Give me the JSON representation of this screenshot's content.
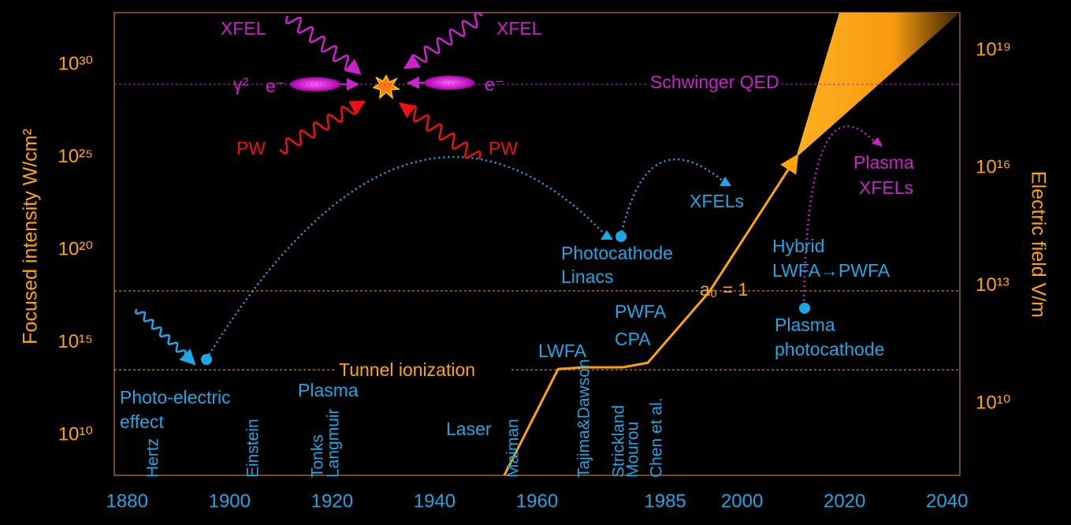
{
  "chart_data": {
    "type": "line",
    "log_scale": true,
    "ylabel": "Focused intensity W/cm²",
    "y2label": "Electric field V/m",
    "xlim": [
      1877.5,
      2042.5
    ],
    "xticks": [
      1880,
      1900,
      1920,
      1940,
      1960,
      1985,
      2000,
      2020,
      2040
    ],
    "ylim": [
      68000000.0,
      6.5e+32
    ],
    "yticks": [
      {
        "value": 10000000000.0,
        "label": "10¹⁰"
      },
      {
        "value": 1000000000000000.0,
        "label": "10¹⁵"
      },
      {
        "value": 1e+20,
        "label": "10²⁰"
      },
      {
        "value": 1e+25,
        "label": "10²⁵"
      },
      {
        "value": 1e+30,
        "label": "10³⁰"
      }
    ],
    "y2lim": [
      150000000.0,
      9.2e+19
    ],
    "y2ticks": [
      {
        "value": 10000000000.0,
        "label": "10¹⁰"
      },
      {
        "value": 10000000000000.0,
        "label": "10¹³"
      },
      {
        "value": 1e+16,
        "label": "10¹⁶"
      },
      {
        "value": 1e+19,
        "label": "10¹⁹"
      }
    ],
    "series": [
      {
        "name": "Laser",
        "color": "#ffa500",
        "x": [
          1953.6,
          1964.1,
          1969.0,
          1976.7,
          1981.6,
          1993.6,
          2010.5
        ],
        "values": [
          68000000.0,
          37000000000000.0,
          46000000000000.0,
          46000000000000.0,
          81000000000000.0,
          5.5e+17,
          9.5e+24
        ]
      }
    ],
    "hlines": [
      {
        "label": "Schwinger QED",
        "value": 8.7e+28,
        "color": "#cc22cc"
      },
      {
        "label": "a₀ = 1",
        "value": 6.2e+17,
        "color": "#ffa500"
      },
      {
        "label": "Tunnel ionization",
        "value": 34000000000000.0,
        "color": "#ffa500"
      }
    ],
    "annotations": [
      {
        "text": "Photo-electric",
        "color": "#1ea7e4"
      },
      {
        "text": "effect",
        "color": "#1ea7e4"
      },
      {
        "text": "Plasma",
        "color": "#1ea7e4"
      },
      {
        "text": "Photocathode",
        "color": "#1ea7e4"
      },
      {
        "text": "Linacs",
        "color": "#1ea7e4"
      },
      {
        "text": "XFELs",
        "color": "#1ea7e4"
      },
      {
        "text": "LWFA",
        "color": "#1ea7e4"
      },
      {
        "text": "PWFA",
        "color": "#1ea7e4"
      },
      {
        "text": "CPA",
        "color": "#1ea7e4"
      },
      {
        "text": "Hybrid",
        "color": "#1ea7e4"
      },
      {
        "text": "LWFA→PWFA",
        "color": "#1ea7e4"
      },
      {
        "text": "Plasma",
        "color": "#1ea7e4"
      },
      {
        "text": "photocathode",
        "color": "#1ea7e4"
      },
      {
        "text": "XFEL",
        "color": "#cc22cc"
      },
      {
        "text": "XFEL",
        "color": "#cc22cc"
      },
      {
        "text": "γ²",
        "color": "#cc22cc"
      },
      {
        "text": "e⁻",
        "color": "#cc22cc"
      },
      {
        "text": "e⁻",
        "color": "#cc22cc"
      },
      {
        "text": "Plasma",
        "color": "#cc22cc"
      },
      {
        "text": "XFELs",
        "color": "#cc22cc"
      },
      {
        "text": "PW",
        "color": "#ee1111"
      },
      {
        "text": "PW",
        "color": "#ee1111"
      }
    ],
    "names_color": "#1ea7e4",
    "names": [
      "Hertz",
      "Einstein",
      "Tonks",
      "Langmuir",
      "Maiman",
      "Tajima&Dawson",
      "Strickland",
      "Mourou",
      "Chen et al."
    ]
  }
}
